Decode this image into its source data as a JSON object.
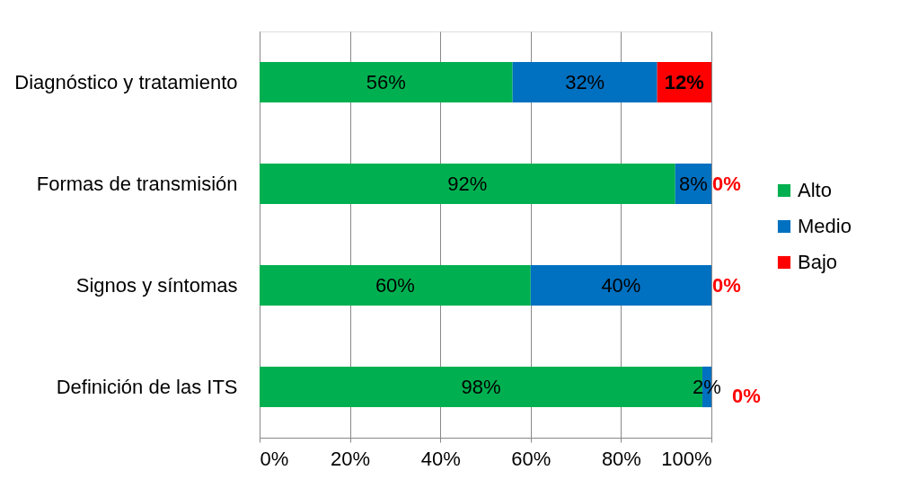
{
  "chart_data": {
    "type": "bar",
    "orientation": "horizontal",
    "stacked": true,
    "categories": [
      "Diagnóstico y tratamiento",
      "Formas de transmisión",
      "Signos y síntomas",
      "Definición de las ITS"
    ],
    "series": [
      {
        "name": "Alto",
        "color": "#00b050",
        "values": [
          56,
          92,
          60,
          98
        ],
        "value_labels": [
          "56%",
          "92%",
          "60%",
          "98%"
        ]
      },
      {
        "name": "Medio",
        "color": "#0070c0",
        "values": [
          32,
          8,
          40,
          2
        ],
        "value_labels": [
          "32%",
          "8%",
          "40%",
          "2%"
        ]
      },
      {
        "name": "Bajo",
        "color": "#ff0000",
        "values": [
          12,
          0,
          0,
          0
        ],
        "value_labels": [
          "12%",
          "0%",
          "0%",
          "0%"
        ]
      }
    ],
    "xlim": [
      0,
      100
    ],
    "xticks": [
      {
        "value": 0,
        "label": "0%"
      },
      {
        "value": 20,
        "label": "20%"
      },
      {
        "value": 40,
        "label": "40%"
      },
      {
        "value": 60,
        "label": "60%"
      },
      {
        "value": 80,
        "label": "80%"
      },
      {
        "value": 100,
        "label": "100%"
      }
    ],
    "grid": "x",
    "legend": "right"
  }
}
